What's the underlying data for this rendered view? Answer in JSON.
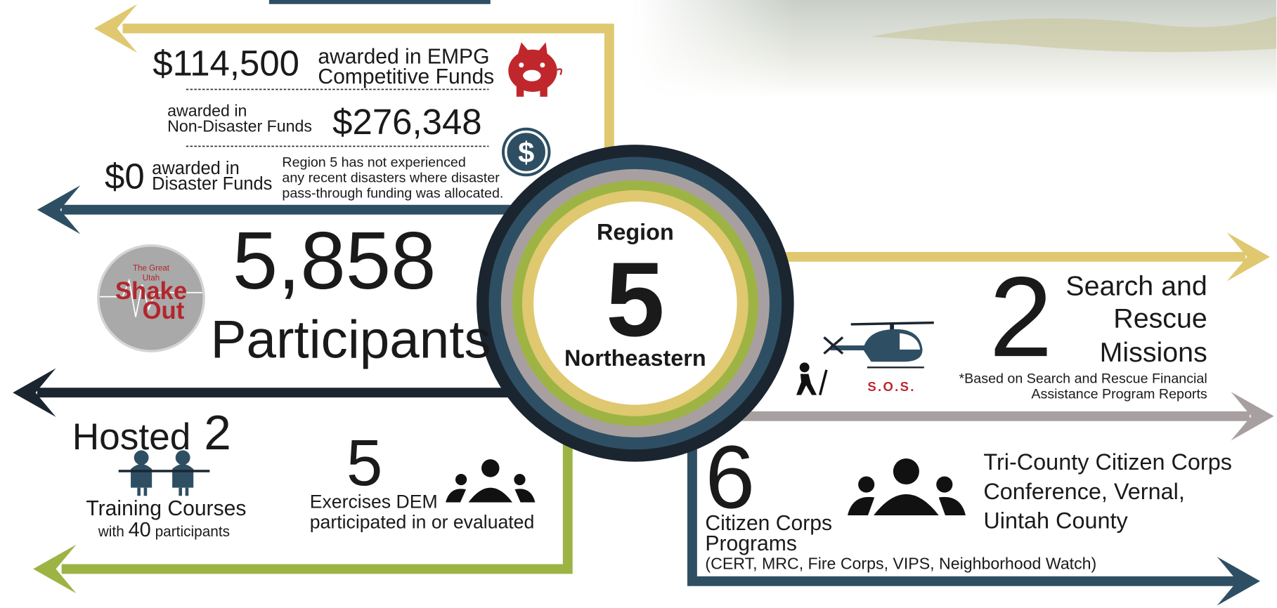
{
  "funding": {
    "empg": {
      "amount": "$114,500",
      "label": [
        "awarded in EMPG",
        "Competitive Funds"
      ]
    },
    "non_disaster": {
      "label": [
        "awarded in",
        "Non-Disaster Funds"
      ],
      "amount": "$276,348"
    },
    "disaster": {
      "amount": "$0",
      "label": [
        "awarded in",
        "Disaster Funds"
      ],
      "note": [
        "Region 5 has not experienced",
        "any recent disasters where disaster",
        "pass-through funding was allocated."
      ]
    }
  },
  "shakeout": {
    "logo": [
      "The Great",
      "Utah",
      "Shake",
      "Out"
    ],
    "count": "5,858",
    "label": "Participants"
  },
  "region": {
    "label": "Region",
    "number": "5",
    "name": "Northeastern"
  },
  "search_rescue": {
    "count": "2",
    "label": [
      "Search and",
      "Rescue",
      "Missions"
    ],
    "sos": "S.O.S.",
    "note": [
      "*Based on Search and Rescue Financial",
      "Assistance Program Reports"
    ]
  },
  "training": {
    "prefix": "Hosted",
    "count": "2",
    "label": "Training Courses",
    "sub_prefix": "with",
    "participants": "40",
    "sub_suffix": "participants"
  },
  "exercises": {
    "count": "5",
    "label": [
      "Exercises DEM",
      "participated in or evaluated"
    ]
  },
  "citizen_corps": {
    "count": "6",
    "label": [
      "Citizen Corps",
      "Programs"
    ],
    "programs": "(CERT, MRC, Fire Corps, VIPS, Neighborhood Watch)",
    "event": [
      "Tri-County Citizen Corps",
      "Conference, Vernal,",
      "Uintah County"
    ]
  }
}
